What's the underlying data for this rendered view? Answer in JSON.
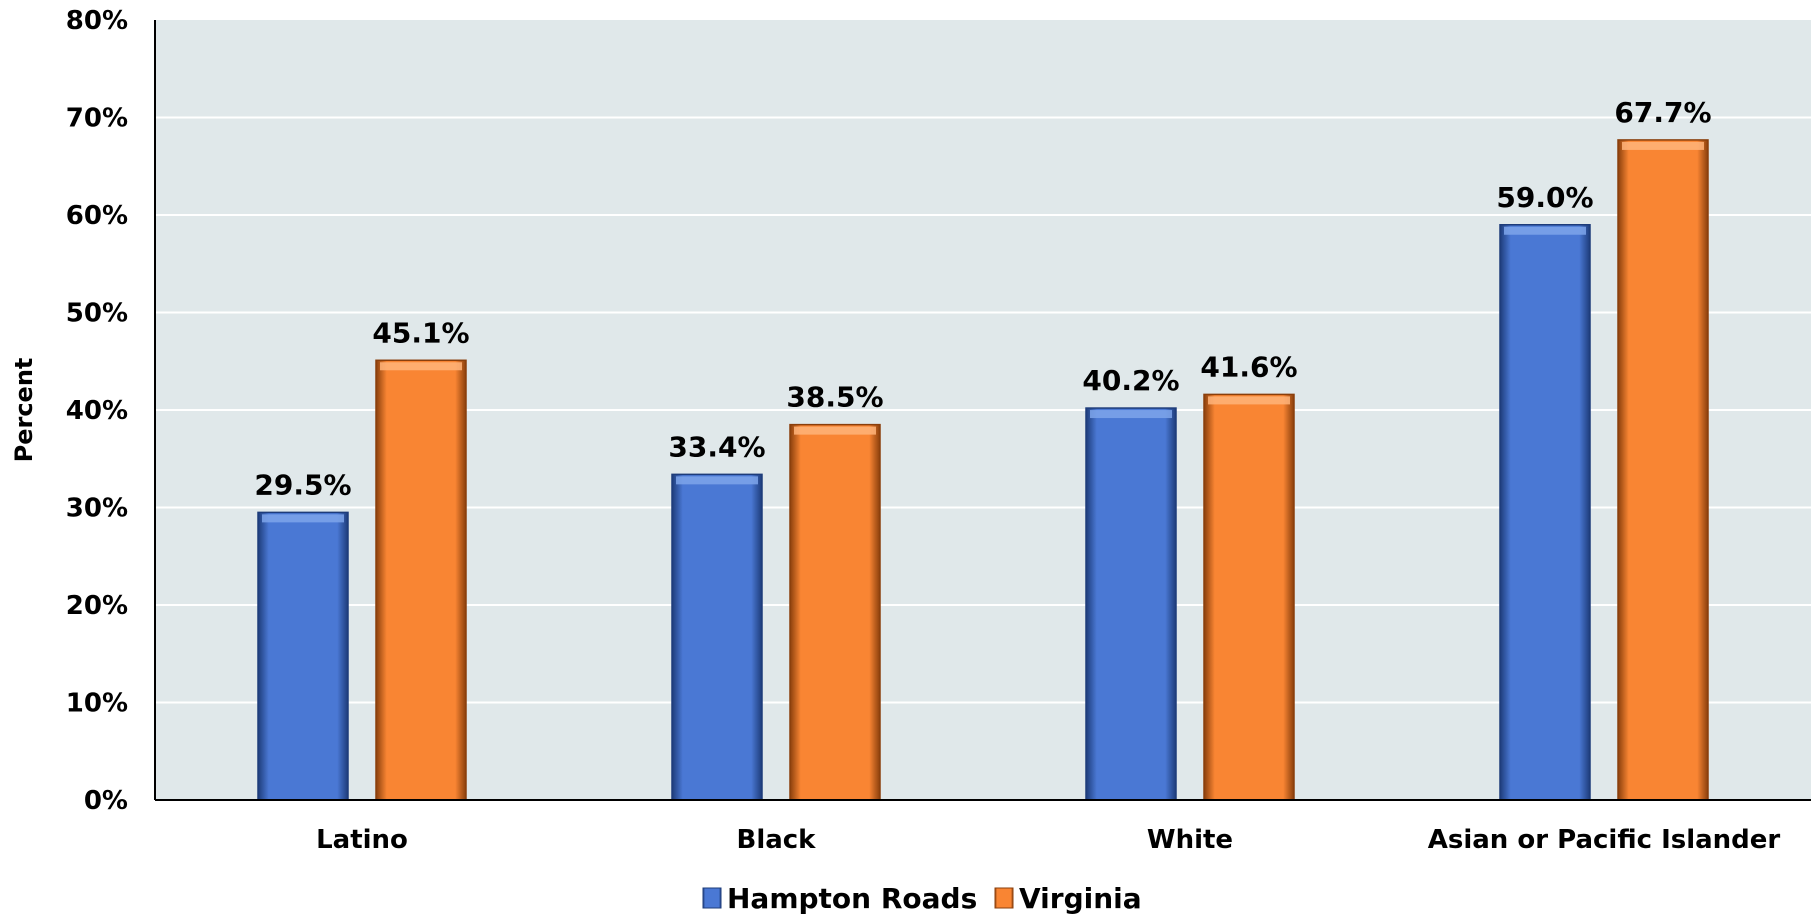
{
  "colors": {
    "plot_bg": "#e0e8ea",
    "grid": "#ffffff",
    "axis": "#000000",
    "hampton": "#4a78d4",
    "virginia": "#f98533"
  },
  "chart_data": {
    "type": "bar",
    "title": "",
    "xlabel": "",
    "ylabel": "Percent",
    "ylim": [
      0,
      80
    ],
    "y_ticks": [
      "0%",
      "10%",
      "20%",
      "30%",
      "40%",
      "50%",
      "60%",
      "70%",
      "80%"
    ],
    "y_tick_values": [
      0,
      10,
      20,
      30,
      40,
      50,
      60,
      70,
      80
    ],
    "grid": true,
    "legend_position": "bottom",
    "categories": [
      "Latino",
      "Black",
      "White",
      "Asian or Pacific Islander"
    ],
    "series": [
      {
        "name": "Hampton Roads",
        "values": [
          29.5,
          33.4,
          40.2,
          59.0
        ],
        "labels": [
          "29.5%",
          "33.4%",
          "40.2%",
          "59.0%"
        ]
      },
      {
        "name": "Virginia",
        "values": [
          45.1,
          38.5,
          41.6,
          67.7
        ],
        "labels": [
          "45.1%",
          "38.5%",
          "41.6%",
          "67.7%"
        ]
      }
    ]
  }
}
